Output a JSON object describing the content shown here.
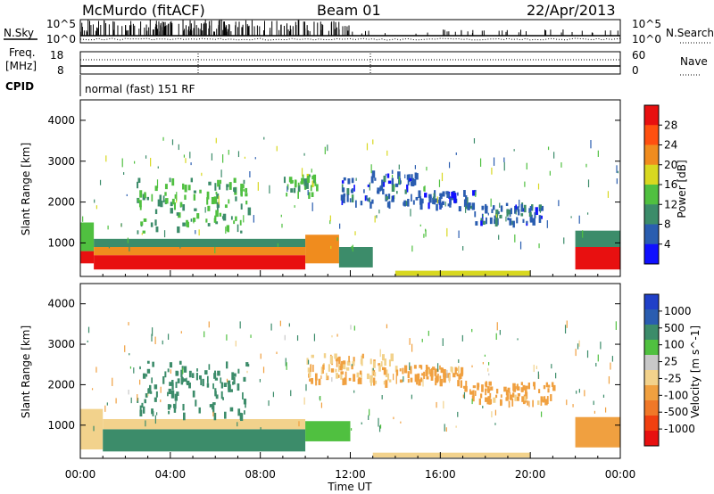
{
  "header": {
    "station": "McMurdo (fitACF)",
    "beam": "Beam 01",
    "date": "22/Apr/2013"
  },
  "summary_panels": {
    "nsky_label": "N.Sky",
    "nsearch_label": "N.Search",
    "noise_ticks": [
      "10^5",
      "10^0"
    ],
    "freq_label": "Freq.",
    "freq_unit": "[MHz]",
    "freq_ticks": [
      "18",
      "8"
    ],
    "nave_label": "Nave",
    "nave_ticks": [
      "60",
      "0"
    ],
    "cpid_label": "CPID",
    "cpid_text": "normal (fast) 151 RF"
  },
  "x_axis": {
    "label": "Time UT",
    "ticks": [
      "00:00",
      "04:00",
      "08:00",
      "12:00",
      "16:00",
      "20:00",
      "00:00"
    ]
  },
  "colors": {
    "power_scale": [
      "#1010ff",
      "#2a5db0",
      "#3c8c6a",
      "#50c040",
      "#d8d820",
      "#f08c1e",
      "#ff5010",
      "#e81010"
    ],
    "velocity_scale": [
      "#2040c8",
      "#2a5db0",
      "#3c8c6a",
      "#50c040",
      "#c8c8c8",
      "#f2d28c",
      "#f0a040",
      "#f07828",
      "#f04010",
      "#e81010"
    ]
  },
  "chart_data": [
    {
      "type": "heatmap",
      "title": "Power",
      "xlabel": "Time UT",
      "ylabel": "Slant Range [km]",
      "x_ticks": [
        "00:00",
        "04:00",
        "08:00",
        "12:00",
        "16:00",
        "20:00",
        "00:00"
      ],
      "xlim_hours": [
        0,
        24
      ],
      "y_ticks": [
        1000,
        2000,
        3000,
        4000
      ],
      "ylim": [
        180,
        4500
      ],
      "colorbar": {
        "label": "Power [dB]",
        "ticks": [
          4,
          8,
          12,
          16,
          20,
          24,
          28
        ],
        "range": [
          0,
          32
        ]
      },
      "bands": [
        {
          "t0": 0.0,
          "t1": 0.6,
          "r0": 500,
          "r1": 800,
          "value": 28
        },
        {
          "t0": 0.0,
          "t1": 0.6,
          "r0": 800,
          "r1": 1500,
          "value": 12
        },
        {
          "t0": 0.6,
          "t1": 10.0,
          "r0": 350,
          "r1": 700,
          "value": 29
        },
        {
          "t0": 0.6,
          "t1": 10.0,
          "r0": 700,
          "r1": 900,
          "value": 22
        },
        {
          "t0": 0.6,
          "t1": 10.0,
          "r0": 900,
          "r1": 1100,
          "value": 10
        },
        {
          "t0": 10.0,
          "t1": 11.5,
          "r0": 500,
          "r1": 1200,
          "value": 22
        },
        {
          "t0": 11.5,
          "t1": 13.0,
          "r0": 400,
          "r1": 900,
          "value": 8
        },
        {
          "t0": 14.0,
          "t1": 20.0,
          "r0": 200,
          "r1": 320,
          "value": 16
        },
        {
          "t0": 22.0,
          "t1": 24.0,
          "r0": 350,
          "r1": 900,
          "value": 29
        },
        {
          "t0": 22.0,
          "t1": 24.0,
          "r0": 900,
          "r1": 1300,
          "value": 10
        }
      ],
      "patches": [
        {
          "t0": 2.5,
          "t1": 7.5,
          "r0": 1300,
          "r1": 2600,
          "value": 12
        },
        {
          "t0": 9.0,
          "t1": 10.5,
          "r0": 2200,
          "r1": 2700,
          "value": 14
        },
        {
          "t0": 11.5,
          "t1": 15.0,
          "r0": 2000,
          "r1": 2800,
          "value": 6
        },
        {
          "t0": 15.0,
          "t1": 17.5,
          "r0": 1900,
          "r1": 2300,
          "value": 6
        },
        {
          "t0": 17.5,
          "t1": 20.5,
          "r0": 1500,
          "r1": 2000,
          "value": 6
        }
      ]
    },
    {
      "type": "heatmap",
      "title": "Velocity",
      "xlabel": "Time UT",
      "ylabel": "Slant Range [km]",
      "x_ticks": [
        "00:00",
        "04:00",
        "08:00",
        "12:00",
        "16:00",
        "20:00",
        "00:00"
      ],
      "xlim_hours": [
        0,
        24
      ],
      "y_ticks": [
        1000,
        2000,
        3000,
        4000
      ],
      "ylim": [
        180,
        4500
      ],
      "colorbar": {
        "label": "Velocity [m s^-1]",
        "ticks": [
          "1000",
          "500",
          "100",
          "25",
          "-25",
          "-100",
          "-500",
          "-1000"
        ]
      },
      "bands": [
        {
          "t0": 0.0,
          "t1": 1.0,
          "r0": 400,
          "r1": 1400,
          "value": -100
        },
        {
          "t0": 1.0,
          "t1": 10.0,
          "r0": 350,
          "r1": 900,
          "value": 200
        },
        {
          "t0": 1.0,
          "t1": 10.0,
          "r0": 900,
          "r1": 1150,
          "value": -100
        },
        {
          "t0": 10.0,
          "t1": 12.0,
          "r0": 600,
          "r1": 1100,
          "value": 50
        },
        {
          "t0": 13.0,
          "t1": 20.0,
          "r0": 200,
          "r1": 320,
          "value": -50
        },
        {
          "t0": 22.0,
          "t1": 24.0,
          "r0": 450,
          "r1": 1200,
          "value": -200
        }
      ],
      "patches": [
        {
          "t0": 2.5,
          "t1": 7.5,
          "r0": 1300,
          "r1": 2600,
          "value": 200
        },
        {
          "t0": 10.0,
          "t1": 14.0,
          "r0": 2100,
          "r1": 2800,
          "value": -100
        },
        {
          "t0": 14.0,
          "t1": 17.0,
          "r0": 2100,
          "r1": 2500,
          "value": -150
        },
        {
          "t0": 17.0,
          "t1": 21.0,
          "r0": 1600,
          "r1": 2100,
          "value": -150
        }
      ]
    }
  ]
}
